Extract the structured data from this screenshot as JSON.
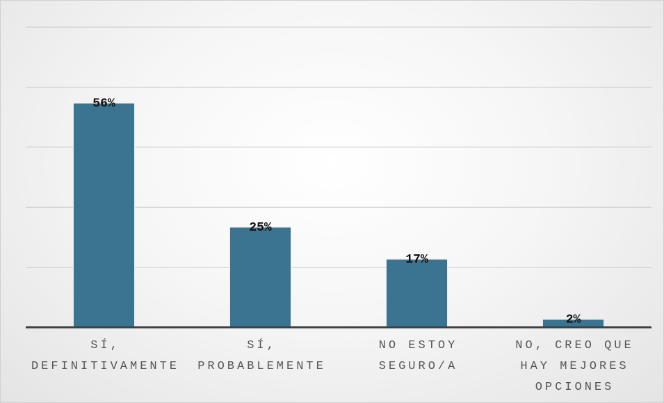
{
  "chart_data": {
    "type": "bar",
    "categories": [
      "SÍ, DEFINITIVAMENTE",
      "SÍ, PROBABLEMENTE",
      "NO ESTOY SEGURO/A",
      "NO, CREO QUE HAY MEJORES OPCIONES"
    ],
    "values": [
      56,
      25,
      17,
      2
    ],
    "value_labels": [
      "56%",
      "25%",
      "17%",
      "2%"
    ],
    "color": "#3a7490",
    "ylim": [
      0,
      75
    ],
    "yticks": [
      0,
      15,
      30,
      45,
      60,
      75
    ],
    "grid": true
  }
}
